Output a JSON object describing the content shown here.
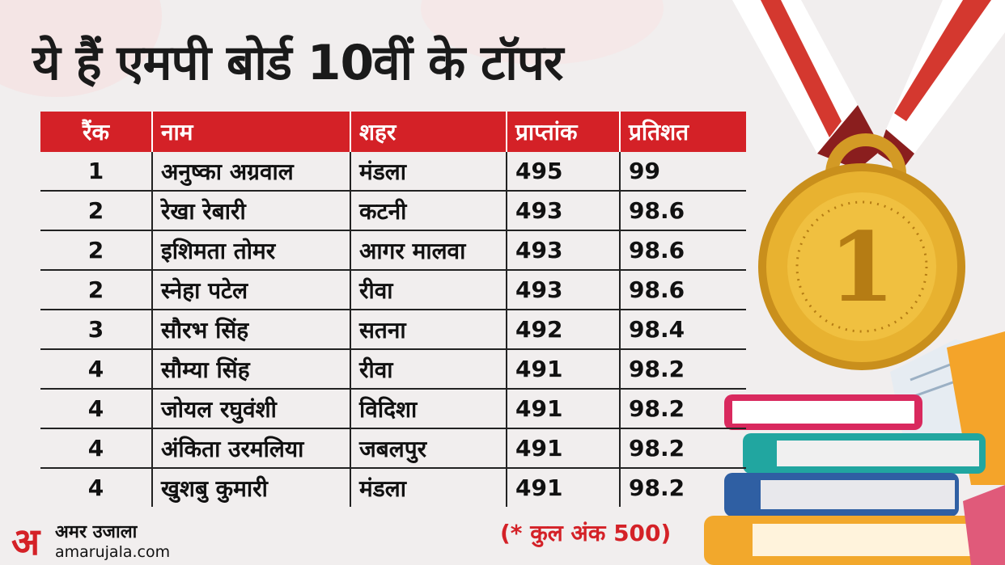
{
  "title": "ये हैं एमपी बोर्ड 10वीं के टॉपर",
  "table": {
    "headers": [
      "रैंक",
      "नाम",
      "शहर",
      "प्राप्तांक",
      "प्रतिशत"
    ],
    "rows": [
      [
        "1",
        "अनुष्का अग्रवाल",
        "मंडला",
        "495",
        "99"
      ],
      [
        "2",
        "रेखा रेबारी",
        "कटनी",
        "493",
        "98.6"
      ],
      [
        "2",
        "इशिमता तोमर",
        "आगर मालवा",
        "493",
        "98.6"
      ],
      [
        "2",
        "स्नेहा पटेल",
        "रीवा",
        "493",
        "98.6"
      ],
      [
        "3",
        "सौरभ सिंह",
        "सतना",
        "492",
        "98.4"
      ],
      [
        "4",
        "सौम्या सिंह",
        "रीवा",
        "491",
        "98.2"
      ],
      [
        "4",
        "जोयल रघुवंशी",
        "विदिशा",
        "491",
        "98.2"
      ],
      [
        "4",
        "अंकिता उरमलिया",
        "जबलपुर",
        "491",
        "98.2"
      ],
      [
        "4",
        "खुशबु कुमारी",
        "मंडला",
        "491",
        "98.2"
      ]
    ]
  },
  "footnote": "(* कुल अंक 500)",
  "logo": {
    "mark": "अ",
    "brand": "अमर उजाला",
    "site": "amarujala.com"
  },
  "medal": {
    "number": "1"
  },
  "colors": {
    "header_red": "#d42127",
    "ribbon_red": "#c9302c",
    "gold": "#e2a92e"
  }
}
